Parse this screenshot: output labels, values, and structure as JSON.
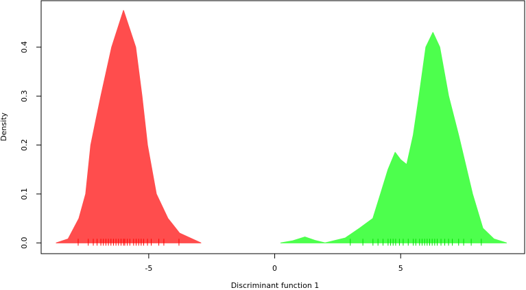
{
  "chart_data": {
    "type": "density",
    "x_label": "Discriminant function 1",
    "y_label": "Density",
    "xlim": [
      -9.27,
      9.92
    ],
    "ylim": [
      -0.022,
      0.495
    ],
    "xticks": [
      -5,
      0,
      5
    ],
    "yticks": [
      {
        "value": 0,
        "label": "0.0"
      },
      0.1,
      0.2,
      0.3,
      0.4
    ],
    "series": [
      {
        "color": "#ff4d4d",
        "rug_color": "#ff0000",
        "x": [
          -8.67,
          -8.2,
          -7.77,
          -7.5,
          -7.3,
          -7.1,
          -6.9,
          -6.47,
          -6.0,
          -5.52,
          -5.27,
          -5.05,
          -4.7,
          -4.24,
          -3.78,
          -2.93
        ],
        "values": [
          0,
          0.008,
          0.05,
          0.1,
          0.2,
          0.25,
          0.3,
          0.4,
          0.475,
          0.4,
          0.3,
          0.2,
          0.1,
          0.05,
          0.02,
          0
        ],
        "rug": [
          -7.8,
          -7.4,
          -7.2,
          -7.05,
          -6.9,
          -6.8,
          -6.7,
          -6.6,
          -6.5,
          -6.4,
          -6.3,
          -6.2,
          -6.1,
          -6.0,
          -5.95,
          -5.85,
          -5.75,
          -5.6,
          -5.5,
          -5.4,
          -5.3,
          -5.2,
          -5.05,
          -4.9,
          -4.6,
          -4.4,
          -3.8
        ]
      },
      {
        "color": "#4dff4d",
        "rug_color": "#00dd00",
        "x": [
          0.24,
          0.7,
          1.2,
          1.6,
          2.0,
          2.8,
          3.37,
          3.9,
          4.2,
          4.5,
          4.78,
          5.0,
          5.24,
          5.5,
          5.73,
          6.0,
          6.28,
          6.55,
          6.9,
          7.3,
          7.85,
          8.26,
          8.7,
          9.2
        ],
        "values": [
          0,
          0.004,
          0.012,
          0.005,
          0,
          0.01,
          0.03,
          0.05,
          0.1,
          0.15,
          0.185,
          0.17,
          0.16,
          0.22,
          0.3,
          0.4,
          0.43,
          0.4,
          0.3,
          0.22,
          0.1,
          0.03,
          0.008,
          0
        ],
        "rug": [
          3.0,
          3.5,
          3.9,
          4.1,
          4.3,
          4.5,
          4.6,
          4.7,
          4.8,
          4.95,
          5.1,
          5.3,
          5.5,
          5.6,
          5.75,
          5.85,
          5.95,
          6.05,
          6.15,
          6.25,
          6.35,
          6.45,
          6.6,
          6.75,
          6.9,
          7.05,
          7.3,
          7.5,
          7.8,
          8.2
        ]
      }
    ]
  }
}
